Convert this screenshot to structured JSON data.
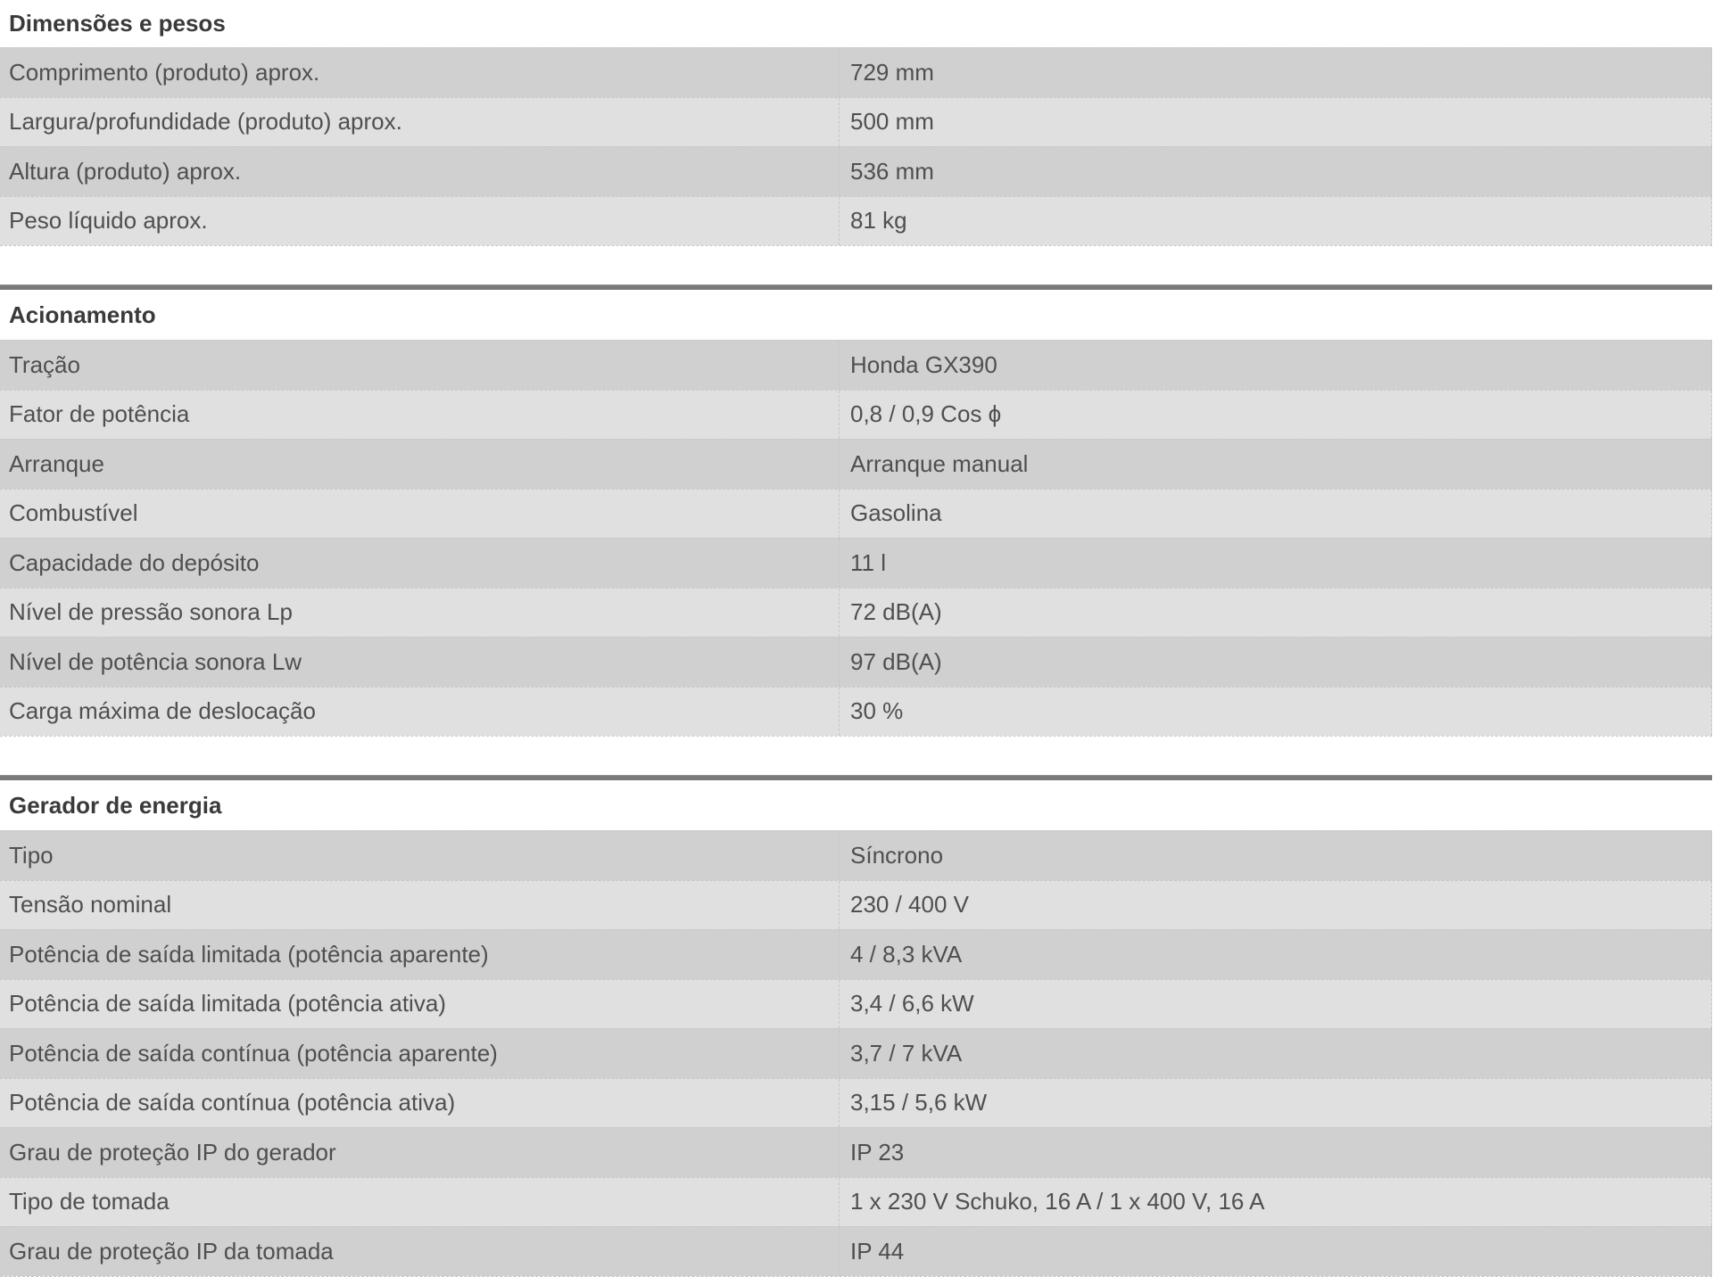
{
  "theme": {
    "row_dark": "#d0d0d0",
    "row_light": "#e0e0e0",
    "divider_bar": "#7a7a7a",
    "dashed_border": "#c6c6c6",
    "text": "#4f4f4f",
    "title_text": "#3a3a3a"
  },
  "sections": [
    {
      "title": "Dimensões e pesos",
      "rows": [
        {
          "label": "Comprimento (produto) aprox.",
          "value": "729 mm"
        },
        {
          "label": "Largura/profundidade (produto) aprox.",
          "value": "500 mm"
        },
        {
          "label": "Altura (produto) aprox.",
          "value": "536 mm"
        },
        {
          "label": "Peso líquido aprox.",
          "value": "81 kg"
        }
      ]
    },
    {
      "title": "Acionamento",
      "rows": [
        {
          "label": "Tração",
          "value": "Honda GX390"
        },
        {
          "label": "Fator de potência",
          "value": "0,8 / 0,9 Cos ϕ"
        },
        {
          "label": "Arranque",
          "value": "Arranque manual"
        },
        {
          "label": "Combustível",
          "value": "Gasolina"
        },
        {
          "label": "Capacidade do depósito",
          "value": "11 l"
        },
        {
          "label": "Nível de pressão sonora Lp",
          "value": "72 dB(A)"
        },
        {
          "label": "Nível de potência sonora Lw",
          "value": "97 dB(A)"
        },
        {
          "label": "Carga máxima de deslocação",
          "value": "30 %"
        }
      ]
    },
    {
      "title": "Gerador de energia",
      "rows": [
        {
          "label": "Tipo",
          "value": "Síncrono"
        },
        {
          "label": "Tensão nominal",
          "value": "230 / 400 V"
        },
        {
          "label": "Potência de saída limitada (potência aparente)",
          "value": "4 / 8,3 kVA"
        },
        {
          "label": "Potência de saída limitada (potência ativa)",
          "value": "3,4 / 6,6 kW"
        },
        {
          "label": "Potência de saída contínua (potência aparente)",
          "value": "3,7 / 7 kVA"
        },
        {
          "label": "Potência de saída contínua (potência ativa)",
          "value": "3,15 / 5,6 kW"
        },
        {
          "label": "Grau de proteção IP do gerador",
          "value": "IP 23"
        },
        {
          "label": "Tipo de tomada",
          "value": "1 x 230 V Schuko, 16 A / 1 x 400 V, 16 A"
        },
        {
          "label": "Grau de proteção IP da tomada",
          "value": "IP 44"
        }
      ]
    }
  ]
}
